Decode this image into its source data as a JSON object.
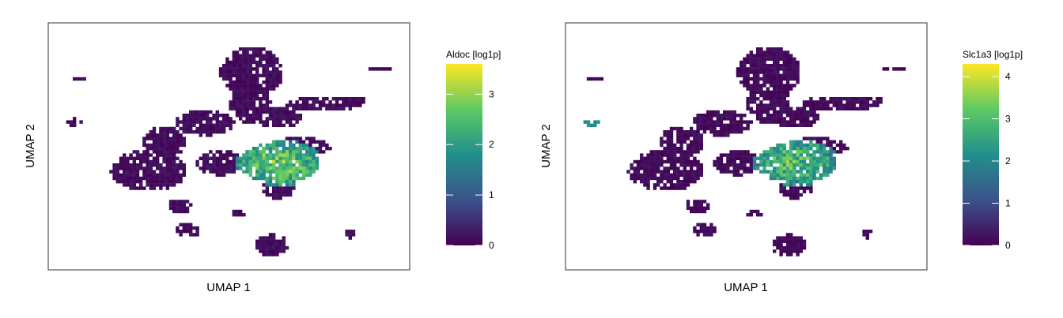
{
  "chart_data": [
    {
      "type": "scatter",
      "subtype": "umap-hexbin-feature-plot",
      "xlabel": "UMAP 1",
      "ylabel": "UMAP 2",
      "axis_ticks": false,
      "grid": false,
      "color_scale": "viridis",
      "colors": [
        "#440154",
        "#3b528b",
        "#21908c",
        "#5dc963",
        "#fde725"
      ],
      "legend": {
        "title": "Aldoc [log1p]",
        "placement": "right",
        "range": [
          0,
          3.6
        ],
        "ticks": [
          0,
          1,
          2,
          3
        ],
        "tick_labels": [
          "0",
          "1",
          "2",
          "3"
        ]
      },
      "expression_pattern": {
        "baseline_value": 0,
        "high_region": "center-right cluster",
        "high_region_value": 3.4
      }
    },
    {
      "type": "scatter",
      "subtype": "umap-hexbin-feature-plot",
      "xlabel": "UMAP 1",
      "ylabel": "UMAP 2",
      "axis_ticks": false,
      "grid": false,
      "color_scale": "viridis",
      "colors": [
        "#440154",
        "#3b528b",
        "#21908c",
        "#5dc963",
        "#fde725"
      ],
      "legend": {
        "title": "Slc1a3 [log1p]",
        "placement": "right",
        "range": [
          0,
          4.3
        ],
        "ticks": [
          0,
          1,
          2,
          3,
          4
        ],
        "tick_labels": [
          "0",
          "1",
          "2",
          "3",
          "4"
        ]
      },
      "expression_pattern": {
        "baseline_value": 0,
        "high_region": "center-right cluster",
        "high_region_value": 3.8,
        "secondary_region": "small left island",
        "secondary_region_value": 2.3
      }
    }
  ]
}
